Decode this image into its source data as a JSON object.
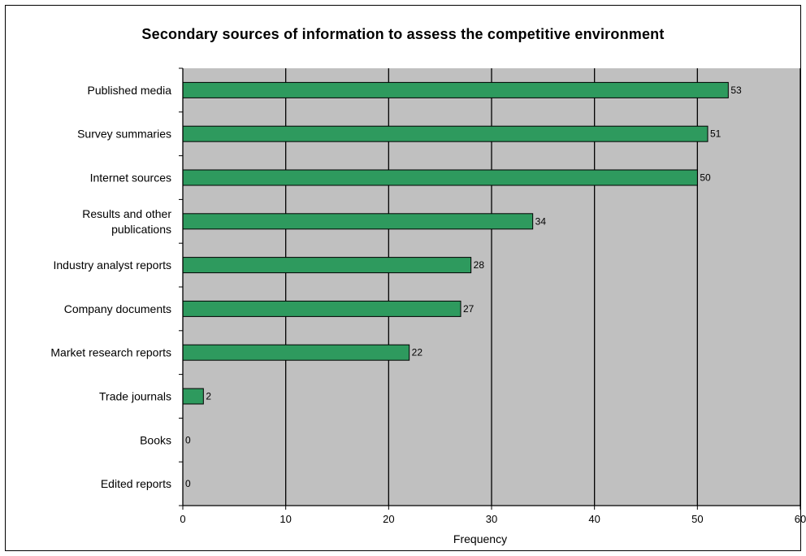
{
  "chart_data": {
    "type": "bar",
    "orientation": "horizontal",
    "title": "Secondary sources of information to assess the competitive environment",
    "xlabel": "Frequency",
    "ylabel": "",
    "categories": [
      "Published media",
      "Survey summaries",
      "Internet sources",
      "Results and other publications",
      "Industry analyst reports",
      "Company documents",
      "Market research reports",
      "Trade journals",
      "Books",
      "Edited reports"
    ],
    "category_lines": [
      [
        "Published media"
      ],
      [
        "Survey summaries"
      ],
      [
        "Internet sources"
      ],
      [
        "Results and other",
        "publications"
      ],
      [
        "Industry analyst reports"
      ],
      [
        "Company documents"
      ],
      [
        "Market research reports"
      ],
      [
        "Trade journals"
      ],
      [
        "Books"
      ],
      [
        "Edited reports"
      ]
    ],
    "values": [
      53,
      51,
      50,
      34,
      28,
      27,
      22,
      2,
      0,
      0
    ],
    "value_labels": [
      "53",
      "51",
      "50",
      "34",
      "28",
      "27",
      "22",
      "2",
      "0",
      "0"
    ],
    "xlim": [
      0,
      60
    ],
    "xticks": [
      0,
      10,
      20,
      30,
      40,
      50,
      60
    ],
    "xtick_labels": [
      "0",
      "10",
      "20",
      "30",
      "40",
      "50",
      "60"
    ],
    "grid": "vertical",
    "legend": "none",
    "colors": {
      "bar_fill": "#2e9a5e",
      "bar_stroke": "#000000",
      "plot_background": "#c0c0c0",
      "gridline": "#000000"
    }
  }
}
